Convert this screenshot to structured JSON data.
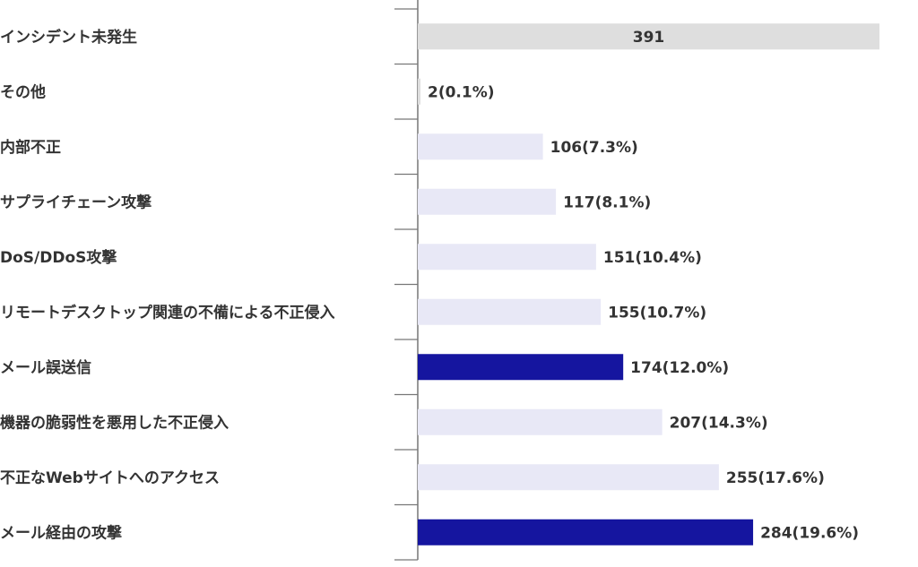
{
  "chart_data": {
    "type": "bar",
    "orientation": "horizontal",
    "categories": [
      "インシデント未発生",
      "その他",
      "内部不正",
      "サプライチェーン攻撃",
      "DoS/DDoS攻撃",
      "リモートデスクトップ関連の不備による不正侵入",
      "メール誤送信",
      "機器の脆弱性を悪用した不正侵入",
      "不正なWebサイトへのアクセス",
      "メール経由の攻撃"
    ],
    "values": [
      391,
      2,
      106,
      117,
      151,
      155,
      174,
      207,
      255,
      284
    ],
    "value_labels": [
      "391",
      "2(0.1%)",
      "106(7.3%)",
      "117(8.1%)",
      "151(10.4%)",
      "155(10.7%)",
      "174(12.0%)",
      "207(14.3%)",
      "255(17.6%)",
      "284(19.6%)"
    ],
    "bar_colors": [
      "#dedede",
      "#dedede",
      "#e8e8f6",
      "#e8e8f6",
      "#e8e8f6",
      "#e8e8f6",
      "#15159f",
      "#e8e8f6",
      "#e8e8f6",
      "#15159f"
    ],
    "value_label_inside": [
      true,
      false,
      false,
      false,
      false,
      false,
      false,
      false,
      false,
      false
    ],
    "title": "",
    "xlabel": "",
    "ylabel": "",
    "xlim": [
      0,
      391
    ],
    "grid": false,
    "legend": "none",
    "axis_color": "#777777",
    "text_color": "#333333"
  }
}
